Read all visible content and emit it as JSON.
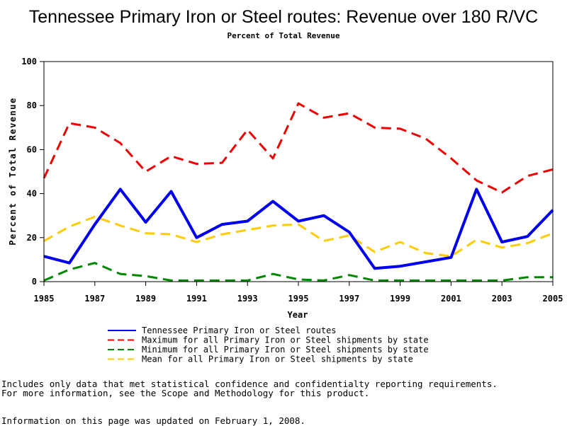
{
  "chart_data": {
    "type": "line",
    "title": "Tennessee Primary Iron or Steel routes: Revenue over 180 R/VC",
    "subtitle": "Percent of Total Revenue",
    "xlabel": "Year",
    "ylabel": "Percent of Total Revenue",
    "x": [
      1985,
      1986,
      1987,
      1988,
      1989,
      1990,
      1991,
      1992,
      1993,
      1994,
      1995,
      1996,
      1997,
      1998,
      1999,
      2000,
      2001,
      2002,
      2003,
      2004,
      2005
    ],
    "xlim": [
      1985,
      2005
    ],
    "ylim": [
      0,
      100
    ],
    "xticks": [
      "1985",
      "1987",
      "1989",
      "1991",
      "1993",
      "1995",
      "1997",
      "1999",
      "2001",
      "2003",
      "2005"
    ],
    "yticks": [
      "0",
      "20",
      "40",
      "60",
      "80",
      "100"
    ],
    "series": [
      {
        "name": "Tennessee Primary Iron or Steel routes",
        "color": "#0000ee",
        "style": "solid",
        "values": [
          11.5,
          8.5,
          26,
          42,
          27,
          41,
          20,
          26,
          27.5,
          36.5,
          27.5,
          30,
          22.5,
          6,
          7,
          9,
          11,
          42,
          18,
          20.5,
          32.5
        ]
      },
      {
        "name": "Maximum for all Primary Iron or Steel shipments by state",
        "color": "#ee0000",
        "style": "dashed",
        "values": [
          47,
          72,
          70,
          63,
          50,
          57,
          53.5,
          54,
          69,
          56,
          81,
          74.5,
          76.5,
          70,
          69.5,
          65,
          56,
          46,
          40.5,
          48,
          51
        ]
      },
      {
        "name": "Minimum for all Primary Iron or Steel shipments by state",
        "color": "#008800",
        "style": "dashed",
        "values": [
          0.5,
          5.5,
          8.5,
          3.5,
          2.5,
          0.5,
          0.5,
          0.5,
          0.5,
          3.5,
          1,
          0.5,
          3,
          0.5,
          0.5,
          0.5,
          0.5,
          0.5,
          0.5,
          2,
          2
        ]
      },
      {
        "name": "Mean for all Primary Iron or Steel shipments by state",
        "color": "#ffcc00",
        "style": "dashed",
        "values": [
          18.5,
          25,
          29.5,
          25.5,
          22,
          21.5,
          18,
          21.5,
          23.5,
          25.5,
          26,
          18.5,
          21,
          13.5,
          18,
          13,
          11.5,
          19,
          15.5,
          17.5,
          22
        ]
      }
    ]
  },
  "notes": {
    "line1": "Includes only data that met statistical confidence and confidentialty reporting requirements.",
    "line2": "For more information, see the Scope and Methodology for this product.",
    "updated": "Information on this page was updated on February 1, 2008."
  }
}
